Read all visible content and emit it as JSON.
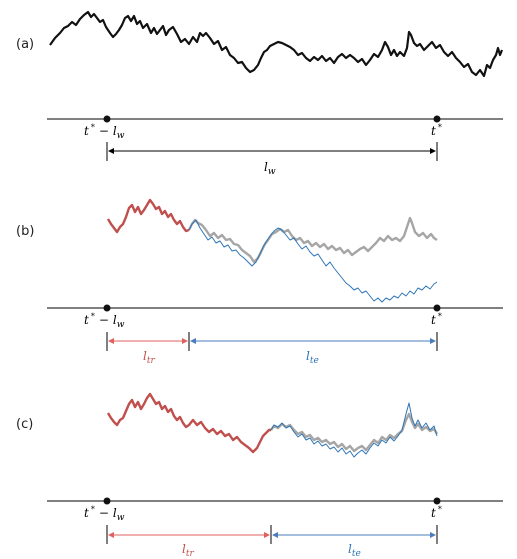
{
  "panels": {
    "a": {
      "label": "(a)",
      "start_label": {
        "base": "t",
        "sup": "*",
        "op": "−",
        "var": "l",
        "sub": "w"
      },
      "end_label": {
        "base": "t",
        "sup": "*"
      },
      "span_label": {
        "var": "l",
        "sub": "w"
      }
    },
    "b": {
      "label": "(b)",
      "start_label": {
        "base": "t",
        "sup": "*",
        "op": "−",
        "var": "l",
        "sub": "w"
      },
      "end_label": {
        "base": "t",
        "sup": "*"
      },
      "train_label": {
        "var": "l",
        "sub": "tr"
      },
      "test_label": {
        "var": "l",
        "sub": "te"
      }
    },
    "c": {
      "label": "(c)",
      "start_label": {
        "base": "t",
        "sup": "*",
        "op": "−",
        "var": "l",
        "sub": "w"
      },
      "end_label": {
        "base": "t",
        "sup": "*"
      },
      "train_label": {
        "var": "l",
        "sub": "tr"
      },
      "test_label": {
        "var": "l",
        "sub": "te"
      }
    }
  },
  "colors": {
    "series": "#111111",
    "train": "#c0504d",
    "actual": "#a6a6a6",
    "forecast": "#2e75b6",
    "axis": "#000000",
    "train_arrow": "#e06060",
    "test_arrow": "#4a7ebb",
    "span_arrow": "#000000"
  }
}
